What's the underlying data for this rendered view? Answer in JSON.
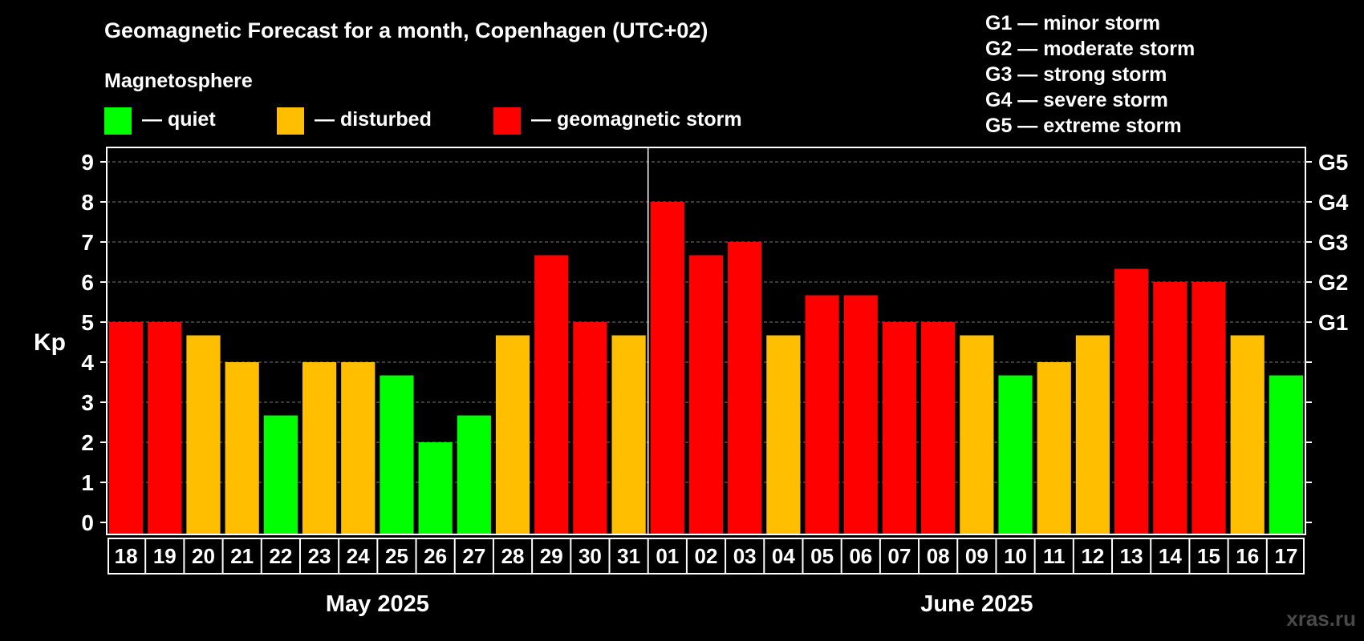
{
  "chart_data": {
    "type": "bar",
    "title": "Geomagnetic Forecast for a month, Copenhagen (UTC+02)",
    "ylabel": "Kp",
    "ylim": [
      0,
      9
    ],
    "yticks": [
      "0",
      "1",
      "2",
      "3",
      "4",
      "5",
      "6",
      "7",
      "8",
      "9"
    ],
    "right_axis": [
      {
        "kp": 5,
        "label": "G1"
      },
      {
        "kp": 6,
        "label": "G2"
      },
      {
        "kp": 7,
        "label": "G3"
      },
      {
        "kp": 8,
        "label": "G4"
      },
      {
        "kp": 9,
        "label": "G5"
      }
    ],
    "categories": [
      "18",
      "19",
      "20",
      "21",
      "22",
      "23",
      "24",
      "25",
      "26",
      "27",
      "28",
      "29",
      "30",
      "31",
      "01",
      "02",
      "03",
      "04",
      "05",
      "06",
      "07",
      "08",
      "09",
      "10",
      "11",
      "12",
      "13",
      "14",
      "15",
      "16",
      "17"
    ],
    "values": [
      5,
      5,
      4.67,
      4,
      2.67,
      4,
      4,
      3.67,
      2,
      2.67,
      4.67,
      6.67,
      5,
      4.67,
      8,
      6.67,
      7,
      4.67,
      5.67,
      5.67,
      5,
      5,
      4.67,
      3.67,
      4,
      4.67,
      6.33,
      6,
      6,
      4.67,
      3.67
    ],
    "status": [
      "storm",
      "storm",
      "disturbed",
      "disturbed",
      "quiet",
      "disturbed",
      "disturbed",
      "quiet",
      "quiet",
      "quiet",
      "disturbed",
      "storm",
      "storm",
      "disturbed",
      "storm",
      "storm",
      "storm",
      "disturbed",
      "storm",
      "storm",
      "storm",
      "storm",
      "disturbed",
      "quiet",
      "disturbed",
      "disturbed",
      "storm",
      "storm",
      "storm",
      "disturbed",
      "quiet"
    ],
    "months": [
      {
        "label": "May 2025",
        "start_index": 0,
        "end_index": 13
      },
      {
        "label": "June 2025",
        "start_index": 14,
        "end_index": 30
      }
    ],
    "month_divider_after_index": 13,
    "grid": true
  },
  "legend": {
    "heading": "Magnetosphere",
    "items": [
      {
        "key": "quiet",
        "label": "— quiet",
        "color": "#00ff00"
      },
      {
        "key": "disturbed",
        "label": "— disturbed",
        "color": "#ffbf00"
      },
      {
        "key": "storm",
        "label": "— geomagnetic storm",
        "color": "#ff0000"
      }
    ]
  },
  "storm_levels": [
    "G1 — minor storm",
    "G2 — moderate storm",
    "G3 — strong storm",
    "G4 — severe storm",
    "G5 — extreme storm"
  ],
  "watermark": "xras.ru"
}
